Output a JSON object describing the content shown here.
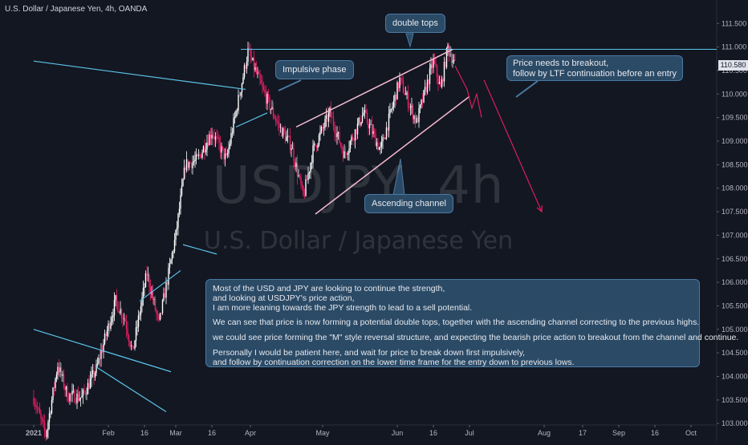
{
  "header": {
    "title": "U.S. Dollar / Japanese Yen, 4h, OANDA"
  },
  "watermark": {
    "symbol": "USDJPY, 4h",
    "name": "U.S. Dollar / Japanese Yen"
  },
  "current_price": "110.580",
  "annotations": {
    "double_tops": "double tops",
    "impulsive_phase": "Impulsive phase",
    "ascending_channel": "Ascending channel",
    "breakout_line1": "Price needs to breakout,",
    "breakout_line2": "follow by LTF continuation before an entry"
  },
  "note": {
    "line1": "Most of the USD and JPY are looking to continue the strength,",
    "line2": "and looking at USDJPY's price action,",
    "line3": "I am more leaning towards the JPY strength to lead to a sell potential.",
    "line4": "We can see that price is now forming a potential double tops, together with the ascending channel correcting to the previous highs.",
    "line5": "we could see price forming the \"M\" style reversal structure, and expecting the bearish price action to breakout from the channel and continue.",
    "line6": "Personally I would be patient here, and wait for price to break down first impulsively,",
    "line7": "and follow by continuation correction on the lower time frame for the entry down to previous lows."
  },
  "colors": {
    "background": "#131722",
    "candle_up": "#ffffff",
    "candle_down": "#e91e63",
    "trendline": "#5bc4e8",
    "channel": "#f8bbd0",
    "callout_bg": "#2b4a66"
  },
  "chart_data": {
    "type": "candlestick",
    "symbol": "USDJPY",
    "interval": "4h",
    "y_ticks": [
      "103.000",
      "103.500",
      "104.000",
      "104.500",
      "105.000",
      "105.500",
      "106.000",
      "106.500",
      "107.000",
      "107.500",
      "108.000",
      "108.500",
      "109.000",
      "109.500",
      "110.000",
      "110.500",
      "111.000",
      "111.500"
    ],
    "x_ticks": [
      "2021",
      "Feb",
      "16",
      "Mar",
      "16",
      "Apr",
      "May",
      "Jun",
      "16",
      "Jul",
      "Aug",
      "17",
      "Sep",
      "16",
      "Oct"
    ],
    "ylim": [
      103.0,
      111.8
    ],
    "x_dates": [
      "2021-01-01",
      "2021-02-01",
      "2021-02-16",
      "2021-03-01",
      "2021-03-16",
      "2021-04-01",
      "2021-05-01",
      "2021-06-01",
      "2021-06-16",
      "2021-07-01",
      "2021-08-01",
      "2021-08-17",
      "2021-09-01",
      "2021-09-16",
      "2021-10-01"
    ],
    "path": [
      [
        "2021-01-01",
        103.55
      ],
      [
        "2021-01-06",
        102.75
      ],
      [
        "2021-01-11",
        104.25
      ],
      [
        "2021-01-15",
        103.6
      ],
      [
        "2021-01-21",
        103.55
      ],
      [
        "2021-01-27",
        104.15
      ],
      [
        "2021-02-04",
        105.6
      ],
      [
        "2021-02-08",
        105.2
      ],
      [
        "2021-02-11",
        104.5
      ],
      [
        "2021-02-17",
        106.2
      ],
      [
        "2021-02-22",
        105.1
      ],
      [
        "2021-03-01",
        107.0
      ],
      [
        "2021-03-05",
        108.5
      ],
      [
        "2021-03-10",
        108.6
      ],
      [
        "2021-03-16",
        109.2
      ],
      [
        "2021-03-22",
        108.6
      ],
      [
        "2021-03-31",
        110.9
      ],
      [
        "2021-04-06",
        110.1
      ],
      [
        "2021-04-13",
        109.3
      ],
      [
        "2021-04-18",
        108.9
      ],
      [
        "2021-04-23",
        107.8
      ],
      [
        "2021-04-27",
        108.8
      ],
      [
        "2021-05-04",
        109.6
      ],
      [
        "2021-05-10",
        108.7
      ],
      [
        "2021-05-18",
        109.6
      ],
      [
        "2021-05-25",
        108.8
      ],
      [
        "2021-06-02",
        110.3
      ],
      [
        "2021-06-09",
        109.4
      ],
      [
        "2021-06-16",
        110.7
      ],
      [
        "2021-06-19",
        110.1
      ],
      [
        "2021-06-22",
        111.0
      ],
      [
        "2021-06-25",
        110.6
      ]
    ],
    "projection": [
      [
        "2021-06-30",
        110.1
      ],
      [
        "2021-07-02",
        109.7
      ],
      [
        "2021-07-04",
        110.0
      ],
      [
        "2021-07-06",
        109.5
      ]
    ],
    "target_arrow": [
      [
        "2021-07-07",
        110.3
      ],
      [
        "2021-07-31",
        107.5
      ]
    ],
    "resistance_level": 110.95,
    "channel": {
      "upper": [
        [
          "2021-04-20",
          109.3
        ],
        [
          "2021-06-24",
          110.95
        ]
      ],
      "lower": [
        [
          "2021-04-28",
          107.45
        ],
        [
          "2021-07-01",
          109.95
        ]
      ]
    },
    "trendlines": [
      [
        [
          "2021-01-01",
          110.7
        ],
        [
          "2021-03-30",
          110.1
        ]
      ],
      [
        [
          "2021-01-01",
          105.0
        ],
        [
          "2021-02-27",
          104.1
        ]
      ],
      [
        [
          "2021-01-27",
          104.2
        ],
        [
          "2021-02-25",
          103.25
        ]
      ],
      [
        [
          "2021-02-14",
          105.6
        ],
        [
          "2021-03-03",
          106.25
        ]
      ],
      [
        [
          "2021-03-04",
          106.8
        ],
        [
          "2021-03-18",
          106.6
        ]
      ],
      [
        [
          "2021-03-26",
          109.3
        ],
        [
          "2021-04-08",
          109.6
        ]
      ]
    ]
  }
}
